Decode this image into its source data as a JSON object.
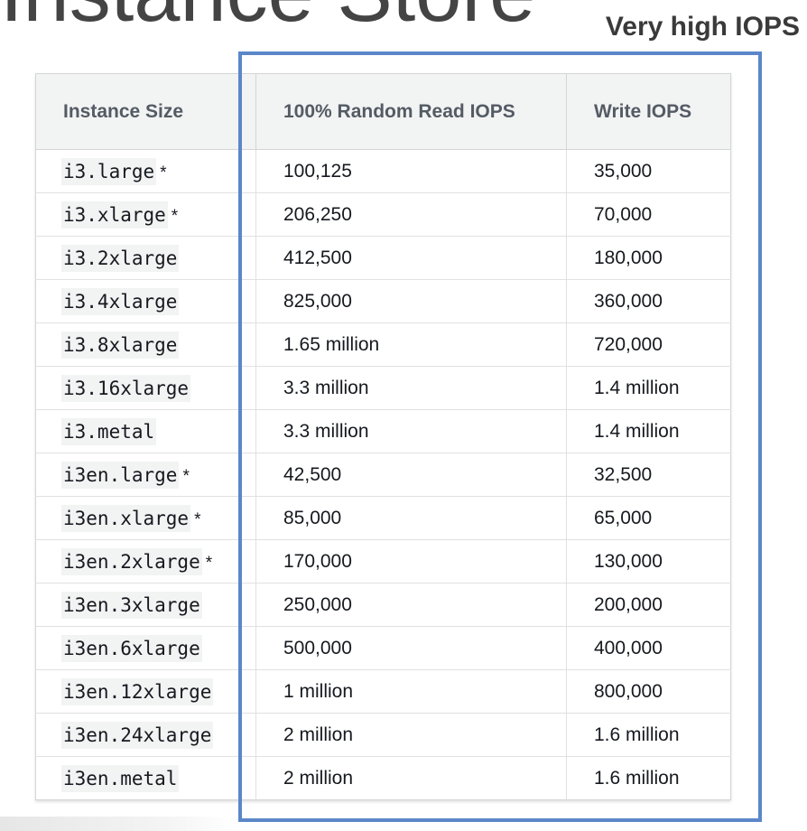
{
  "slide": {
    "title": "Instance Store",
    "callout_label": "Very high IOPS"
  },
  "table": {
    "headers": [
      "Instance Size",
      "100% Random Read IOPS",
      "Write IOPS"
    ],
    "rows": [
      {
        "size": "i3.large",
        "note": "*",
        "read": "100,125",
        "write": "35,000"
      },
      {
        "size": "i3.xlarge",
        "note": "*",
        "read": "206,250",
        "write": "70,000"
      },
      {
        "size": "i3.2xlarge",
        "note": "",
        "read": "412,500",
        "write": "180,000"
      },
      {
        "size": "i3.4xlarge",
        "note": "",
        "read": "825,000",
        "write": "360,000"
      },
      {
        "size": "i3.8xlarge",
        "note": "",
        "read": "1.65 million",
        "write": "720,000"
      },
      {
        "size": "i3.16xlarge",
        "note": "",
        "read": "3.3 million",
        "write": "1.4 million"
      },
      {
        "size": "i3.metal",
        "note": "",
        "read": "3.3 million",
        "write": "1.4 million"
      },
      {
        "size": "i3en.large",
        "note": "*",
        "read": "42,500",
        "write": "32,500"
      },
      {
        "size": "i3en.xlarge",
        "note": "*",
        "read": "85,000",
        "write": "65,000"
      },
      {
        "size": "i3en.2xlarge",
        "note": "*",
        "read": "170,000",
        "write": "130,000"
      },
      {
        "size": "i3en.3xlarge",
        "note": "",
        "read": "250,000",
        "write": "200,000"
      },
      {
        "size": "i3en.6xlarge",
        "note": "",
        "read": "500,000",
        "write": "400,000"
      },
      {
        "size": "i3en.12xlarge",
        "note": "",
        "read": "1 million",
        "write": "800,000"
      },
      {
        "size": "i3en.24xlarge",
        "note": "",
        "read": "2 million",
        "write": "1.6 million"
      },
      {
        "size": "i3en.metal",
        "note": "",
        "read": "2 million",
        "write": "1.6 million"
      }
    ]
  },
  "colors": {
    "highlight_border": "#5b87c9",
    "header_background": "#f2f3f3",
    "header_text": "#545b64",
    "cell_text": "#16191f"
  }
}
